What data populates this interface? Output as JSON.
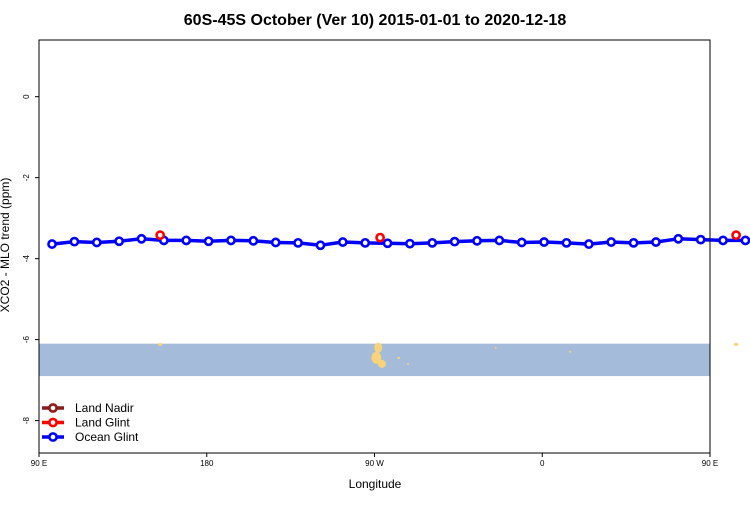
{
  "chart_data": {
    "type": "line",
    "title": "60S-45S October (Ver 10)   2015-01-01 to 2020-12-18",
    "xlabel": "Longitude",
    "ylabel": "XCO2 - MLO trend (ppm)",
    "xlim": [
      90,
      450
    ],
    "ylim": [
      -8.8,
      1.4
    ],
    "x_ticks": [
      {
        "value": 90,
        "label": "90 E"
      },
      {
        "value": 180,
        "label": "180"
      },
      {
        "value": 270,
        "label": "90 W"
      },
      {
        "value": 360,
        "label": "0"
      },
      {
        "value": 450,
        "label": "90 E"
      },
      {
        "value": 540,
        "label": "180"
      }
    ],
    "y_ticks": [
      {
        "value": 0,
        "label": "0"
      },
      {
        "value": -2,
        "label": "-2"
      },
      {
        "value": -4,
        "label": "-4"
      },
      {
        "value": -6,
        "label": "-6"
      },
      {
        "value": -8,
        "label": "-8"
      }
    ],
    "legend_position": "bottom-left",
    "background_map": {
      "band_y_range": [
        -6.1,
        -6.9
      ],
      "ocean_color": "#A4BBDA",
      "land_color": "#F8D37A"
    },
    "series": [
      {
        "name": "Land Nadir",
        "color": "#8B1A1A",
        "x": [],
        "y": []
      },
      {
        "name": "Land Glint",
        "color": "#FF0000",
        "x": [
          155,
          273,
          464
        ],
        "y": [
          -3.42,
          -3.48,
          -3.42
        ]
      },
      {
        "name": "Ocean Glint",
        "color": "#0000FF",
        "x": [
          97,
          109,
          121,
          133,
          145,
          157,
          169,
          181,
          193,
          205,
          217,
          229,
          241,
          253,
          265,
          277,
          289,
          301,
          313,
          325,
          337,
          349,
          361,
          373,
          385,
          397,
          409,
          421,
          433,
          445,
          457,
          469
        ],
        "y": [
          -3.64,
          -3.58,
          -3.6,
          -3.57,
          -3.51,
          -3.55,
          -3.55,
          -3.57,
          -3.55,
          -3.56,
          -3.6,
          -3.61,
          -3.67,
          -3.59,
          -3.61,
          -3.62,
          -3.63,
          -3.61,
          -3.58,
          -3.56,
          -3.55,
          -3.6,
          -3.59,
          -3.61,
          -3.64,
          -3.59,
          -3.61,
          -3.59,
          -3.51,
          -3.53,
          -3.55,
          -3.55
        ]
      }
    ]
  }
}
